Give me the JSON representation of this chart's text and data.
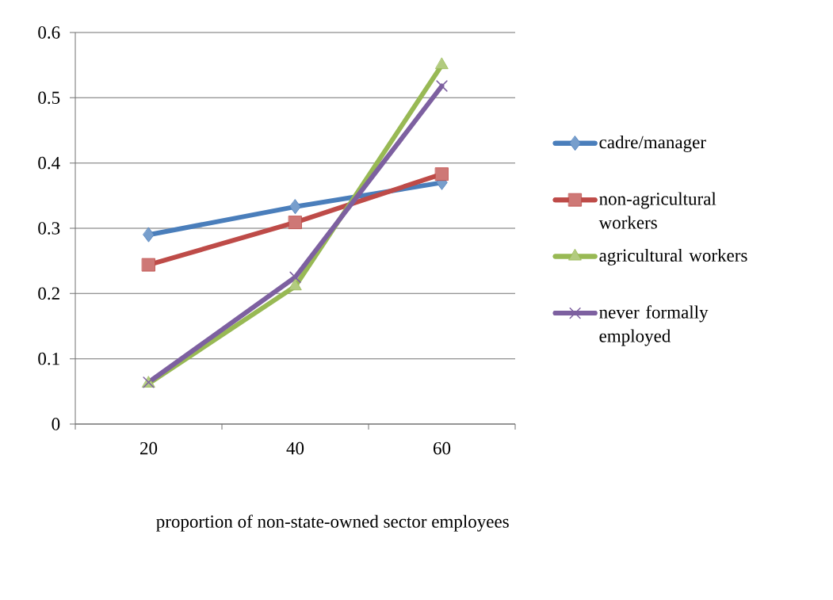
{
  "chart_data": {
    "type": "line",
    "xlabel": "proportion of non-state-owned sector employees",
    "categories": [
      "20",
      "40",
      "60"
    ],
    "series": [
      {
        "name": "cadre/manager",
        "color": "#4a7ebb",
        "marker": "diamond",
        "values": [
          0.29,
          0.333,
          0.37
        ]
      },
      {
        "name": "non-agricultural workers",
        "color": "#be4b48",
        "marker": "square",
        "values": [
          0.244,
          0.309,
          0.383
        ]
      },
      {
        "name": "agricultural workers",
        "color": "#98b954",
        "marker": "triangle",
        "values": [
          0.062,
          0.211,
          0.55
        ]
      },
      {
        "name": "never formally employed",
        "color": "#7d60a0",
        "marker": "cross",
        "values": [
          0.064,
          0.225,
          0.518
        ]
      }
    ],
    "ylim": [
      0,
      0.6
    ],
    "yticks": [
      0,
      0.1,
      0.2,
      0.3,
      0.4,
      0.5,
      0.6
    ],
    "grid": "y",
    "legend": "right"
  }
}
